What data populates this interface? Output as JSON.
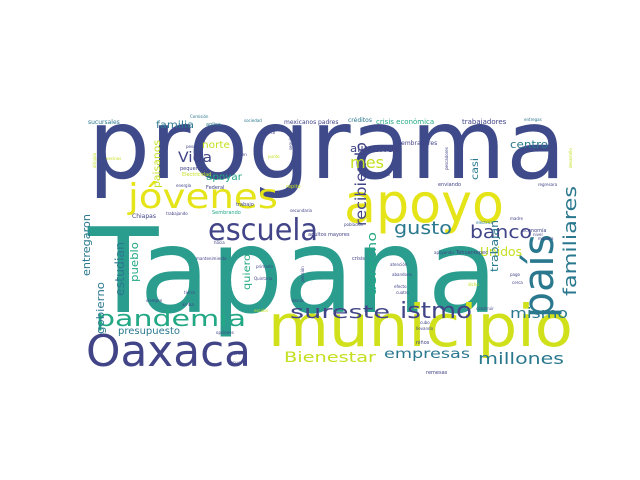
{
  "cloud": {
    "palette": {
      "purple": "#414487",
      "teal": "#2a788e",
      "green": "#22a884",
      "lime": "#7ad151",
      "yellow": "#e5e419",
      "dark": "#440154"
    },
    "words": {
      "tapana": "Tapana",
      "programa": "programa",
      "municipio": "municipio",
      "apoyo": "apoyo",
      "oaxaca": "Oaxaca",
      "jovenes": "jóvenes",
      "pais": "país",
      "escuela": "escuela",
      "pandemia": "pandemia",
      "istmo": "istmo",
      "sureste": "sureste",
      "banco": "banco",
      "gusto": "gusto",
      "familiares": "familiares",
      "millones": "millones",
      "bienestar": "Bienestar",
      "empresas": "empresas",
      "mismo": "mismo",
      "recibiendo": "recibiendo",
      "derecho": "derecho",
      "mes": "mes",
      "alumnos": "alumnos",
      "centro": "centro",
      "unidos": "Unidos",
      "trabajan": "trabajan",
      "vida": "Vida",
      "apoyar": "apoyar",
      "familia": "familia",
      "norte": "norte",
      "estudian": "estudian",
      "pueblo": "pueblo",
      "quiero": "quiero",
      "gobierno": "gobierno",
      "entregaron": "entregaron",
      "presupuesto": "presupuesto",
      "paisanos": "paisanos",
      "casi": "casi",
      "trabajadores": "trabajadores",
      "crisis_economica": "crisis económica",
      "creditos": "créditos",
      "sembradores": "sembradores",
      "chiapas": "Chiapas",
      "mexicanos": "mexicanos",
      "padres": "padres",
      "sucursales": "sucursales",
      "comision": "Comisión",
      "aplica": "aplica",
      "sociedad": "sociedad",
      "entregas": "entregas",
      "pequenos": "pequeños",
      "electricidad": "Electricidad",
      "energia": "energía",
      "federal": "Federal",
      "trabajo": "trabajo",
      "sembrando": "Sembrando",
      "trabajando": "trabajando",
      "secundaria": "secundaria",
      "poblacion": "población",
      "adultos_mayores": "adultos mayores",
      "crisis": "crisis",
      "tehuantepec": "Tehuantepec",
      "remesas": "remesas",
      "economia": "economía",
      "madre": "madre",
      "enviando": "enviando",
      "regresara": "regresara",
      "manera": "manera",
      "nivel": "nivel",
      "electrica": "eléctrica",
      "pago": "pago",
      "cerca": "cerca",
      "hacia": "hacia",
      "mantenimiento": "mantenimiento",
      "primaria": "primaria",
      "tierra": "tierra",
      "siempre": "siempre",
      "arriba": "arriba",
      "opciones": "opciones",
      "impuesto": "impuesto",
      "ninos_mayus": "Niños",
      "ninos": "niños",
      "llevando": "llevando",
      "atencion": "atención",
      "abandono": "abandono",
      "efecto": "efecto",
      "cuatro": "cuatro",
      "apoyando": "apoyando",
      "becas": "becas",
      "pension": "pensión",
      "quintana": "Quintana",
      "escolar": "escolar",
      "construir": "construir",
      "dicho": "dicho",
      "repito": "repito",
      "puerto": "puerto",
      "seguir": "seguir",
      "viven": "viven",
      "rescataba": "rescataba",
      "cruz": "Cruz",
      "pescadores": "pescadores",
      "dirigido": "dirigido",
      "punto": "punto",
      "pesca": "pesca",
      "cubo": "cubo",
      "desarrollo": "desarrollo",
      "vecinos": "vecinos"
    }
  }
}
